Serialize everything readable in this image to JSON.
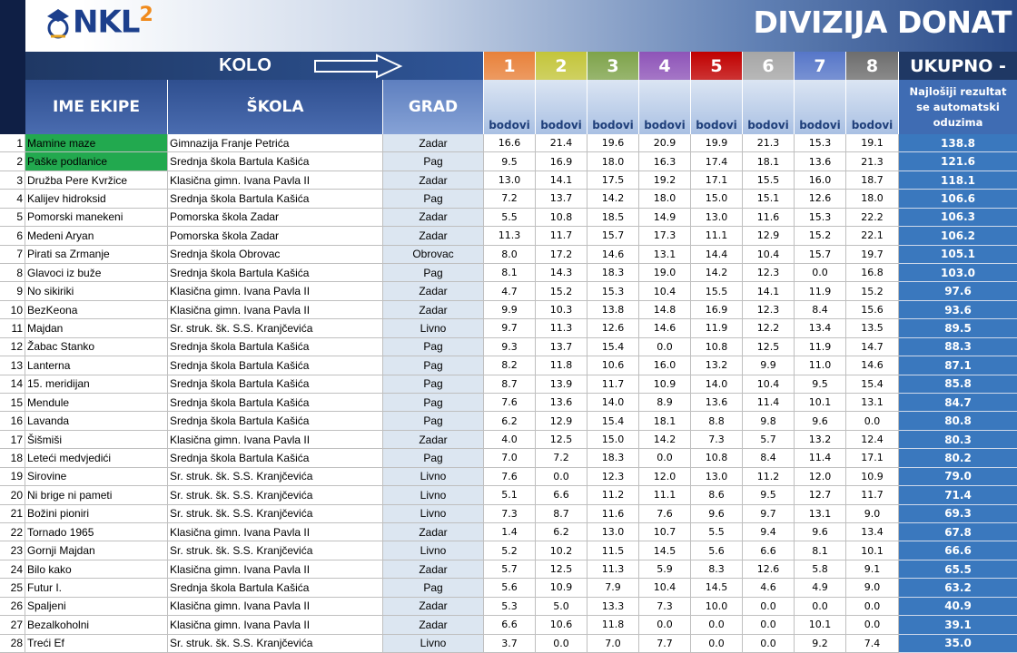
{
  "header": {
    "logo": "NKL",
    "logo_sup": "2",
    "title": "DIVIZIJA DONAT"
  },
  "table": {
    "kolo": "KOLO",
    "rounds": [
      "1",
      "2",
      "3",
      "4",
      "5",
      "6",
      "7",
      "8"
    ],
    "total": "UKUPNO -",
    "columns": [
      "IME EKIPE",
      "ŠKOLA",
      "GRAD"
    ],
    "points_labels": [
      "bodovi",
      "bodovi",
      "bodovi",
      "bodovi",
      "bodovi",
      "bodovi",
      "bodovi",
      "bodovi"
    ],
    "total_note": "Najlošiji rezultat se automatski oduzima",
    "rows": [
      [
        "1",
        "Mamine maze",
        "Gimnazija Franje Petrića",
        "Zadar",
        "16.6",
        "21.4",
        "19.6",
        "20.9",
        "19.9",
        "21.3",
        "15.3",
        "19.1",
        "138.8"
      ],
      [
        "2",
        "Paške podlanice",
        "Srednja škola Bartula Kašića",
        "Pag",
        "9.5",
        "16.9",
        "18.0",
        "16.3",
        "17.4",
        "18.1",
        "13.6",
        "21.3",
        "121.6"
      ],
      [
        "3",
        "Družba Pere Kvržice",
        "Klasična gimn. Ivana Pavla II",
        "Zadar",
        "13.0",
        "14.1",
        "17.5",
        "19.2",
        "17.1",
        "15.5",
        "16.0",
        "18.7",
        "118.1"
      ],
      [
        "4",
        "Kalijev hidroksid",
        "Srednja škola Bartula Kašića",
        "Pag",
        "7.2",
        "13.7",
        "14.2",
        "18.0",
        "15.0",
        "15.1",
        "12.6",
        "18.0",
        "106.6"
      ],
      [
        "5",
        "Pomorski manekeni",
        "Pomorska škola Zadar",
        "Zadar",
        "5.5",
        "10.8",
        "18.5",
        "14.9",
        "13.0",
        "11.6",
        "15.3",
        "22.2",
        "106.3"
      ],
      [
        "6",
        "Medeni Aryan",
        "Pomorska škola Zadar",
        "Zadar",
        "11.3",
        "11.7",
        "15.7",
        "17.3",
        "11.1",
        "12.9",
        "15.2",
        "22.1",
        "106.2"
      ],
      [
        "7",
        "Pirati sa Zrmanje",
        "Srednja škola Obrovac",
        "Obrovac",
        "8.0",
        "17.2",
        "14.6",
        "13.1",
        "14.4",
        "10.4",
        "15.7",
        "19.7",
        "105.1"
      ],
      [
        "8",
        "Glavoci iz buže",
        "Srednja škola Bartula Kašića",
        "Pag",
        "8.1",
        "14.3",
        "18.3",
        "19.0",
        "14.2",
        "12.3",
        "0.0",
        "16.8",
        "103.0"
      ],
      [
        "9",
        "No sikiriki",
        "Klasična gimn. Ivana Pavla II",
        "Zadar",
        "4.7",
        "15.2",
        "15.3",
        "10.4",
        "15.5",
        "14.1",
        "11.9",
        "15.2",
        "97.6"
      ],
      [
        "10",
        "BezKeona",
        "Klasična gimn. Ivana Pavla II",
        "Zadar",
        "9.9",
        "10.3",
        "13.8",
        "14.8",
        "16.9",
        "12.3",
        "8.4",
        "15.6",
        "93.6"
      ],
      [
        "11",
        "Majdan",
        "Sr. struk. šk. S.S. Kranjčevića",
        "Livno",
        "9.7",
        "11.3",
        "12.6",
        "14.6",
        "11.9",
        "12.2",
        "13.4",
        "13.5",
        "89.5"
      ],
      [
        "12",
        "Žabac Stanko",
        "Srednja škola Bartula Kašića",
        "Pag",
        "9.3",
        "13.7",
        "15.4",
        "0.0",
        "10.8",
        "12.5",
        "11.9",
        "14.7",
        "88.3"
      ],
      [
        "13",
        "Lanterna",
        "Srednja škola Bartula Kašića",
        "Pag",
        "8.2",
        "11.8",
        "10.6",
        "16.0",
        "13.2",
        "9.9",
        "11.0",
        "14.6",
        "87.1"
      ],
      [
        "14",
        "15. meridijan",
        "Srednja škola Bartula Kašića",
        "Pag",
        "8.7",
        "13.9",
        "11.7",
        "10.9",
        "14.0",
        "10.4",
        "9.5",
        "15.4",
        "85.8"
      ],
      [
        "15",
        "Mendule",
        "Srednja škola Bartula Kašića",
        "Pag",
        "7.6",
        "13.6",
        "14.0",
        "8.9",
        "13.6",
        "11.4",
        "10.1",
        "13.1",
        "84.7"
      ],
      [
        "16",
        "Lavanda",
        "Srednja škola Bartula Kašića",
        "Pag",
        "6.2",
        "12.9",
        "15.4",
        "18.1",
        "8.8",
        "9.8",
        "9.6",
        "0.0",
        "80.8"
      ],
      [
        "17",
        "Šišmiši",
        "Klasična gimn. Ivana Pavla II",
        "Zadar",
        "4.0",
        "12.5",
        "15.0",
        "14.2",
        "7.3",
        "5.7",
        "13.2",
        "12.4",
        "80.3"
      ],
      [
        "18",
        "Leteći medvjedići",
        "Srednja škola Bartula Kašića",
        "Pag",
        "7.0",
        "7.2",
        "18.3",
        "0.0",
        "10.8",
        "8.4",
        "11.4",
        "17.1",
        "80.2"
      ],
      [
        "19",
        "Sirovine",
        "Sr. struk. šk. S.S. Kranjčevića",
        "Livno",
        "7.6",
        "0.0",
        "12.3",
        "12.0",
        "13.0",
        "11.2",
        "12.0",
        "10.9",
        "79.0"
      ],
      [
        "20",
        "Ni brige ni pameti",
        "Sr. struk. šk. S.S. Kranjčevića",
        "Livno",
        "5.1",
        "6.6",
        "11.2",
        "11.1",
        "8.6",
        "9.5",
        "12.7",
        "11.7",
        "71.4"
      ],
      [
        "21",
        "Božini pioniri",
        "Sr. struk. šk. S.S. Kranjčevića",
        "Livno",
        "7.3",
        "8.7",
        "11.6",
        "7.6",
        "9.6",
        "9.7",
        "13.1",
        "9.0",
        "69.3"
      ],
      [
        "22",
        "Tornado 1965",
        "Klasična gimn. Ivana Pavla II",
        "Zadar",
        "1.4",
        "6.2",
        "13.0",
        "10.7",
        "5.5",
        "9.4",
        "9.6",
        "13.4",
        "67.8"
      ],
      [
        "23",
        "Gornji Majdan",
        "Sr. struk. šk. S.S. Kranjčevića",
        "Livno",
        "5.2",
        "10.2",
        "11.5",
        "14.5",
        "5.6",
        "6.6",
        "8.1",
        "10.1",
        "66.6"
      ],
      [
        "24",
        "Bilo kako",
        "Klasična gimn. Ivana Pavla II",
        "Zadar",
        "5.7",
        "12.5",
        "11.3",
        "5.9",
        "8.3",
        "12.6",
        "5.8",
        "9.1",
        "65.5"
      ],
      [
        "25",
        "Futur I.",
        "Srednja škola Bartula Kašića",
        "Pag",
        "5.6",
        "10.9",
        "7.9",
        "10.4",
        "14.5",
        "4.6",
        "4.9",
        "9.0",
        "63.2"
      ],
      [
        "26",
        "Spaljeni",
        "Klasična gimn. Ivana Pavla II",
        "Zadar",
        "5.3",
        "5.0",
        "13.3",
        "7.3",
        "10.0",
        "0.0",
        "0.0",
        "0.0",
        "40.9"
      ],
      [
        "27",
        "Bezalkoholni",
        "Klasična gimn. Ivana Pavla II",
        "Zadar",
        "6.6",
        "10.6",
        "11.8",
        "0.0",
        "0.0",
        "0.0",
        "10.1",
        "0.0",
        "39.1"
      ],
      [
        "28",
        "Treći Ef",
        "Sr. struk. šk. S.S. Kranjčevića",
        "Livno",
        "3.7",
        "0.0",
        "7.0",
        "7.7",
        "0.0",
        "0.0",
        "9.2",
        "7.4",
        "35.0"
      ]
    ]
  }
}
